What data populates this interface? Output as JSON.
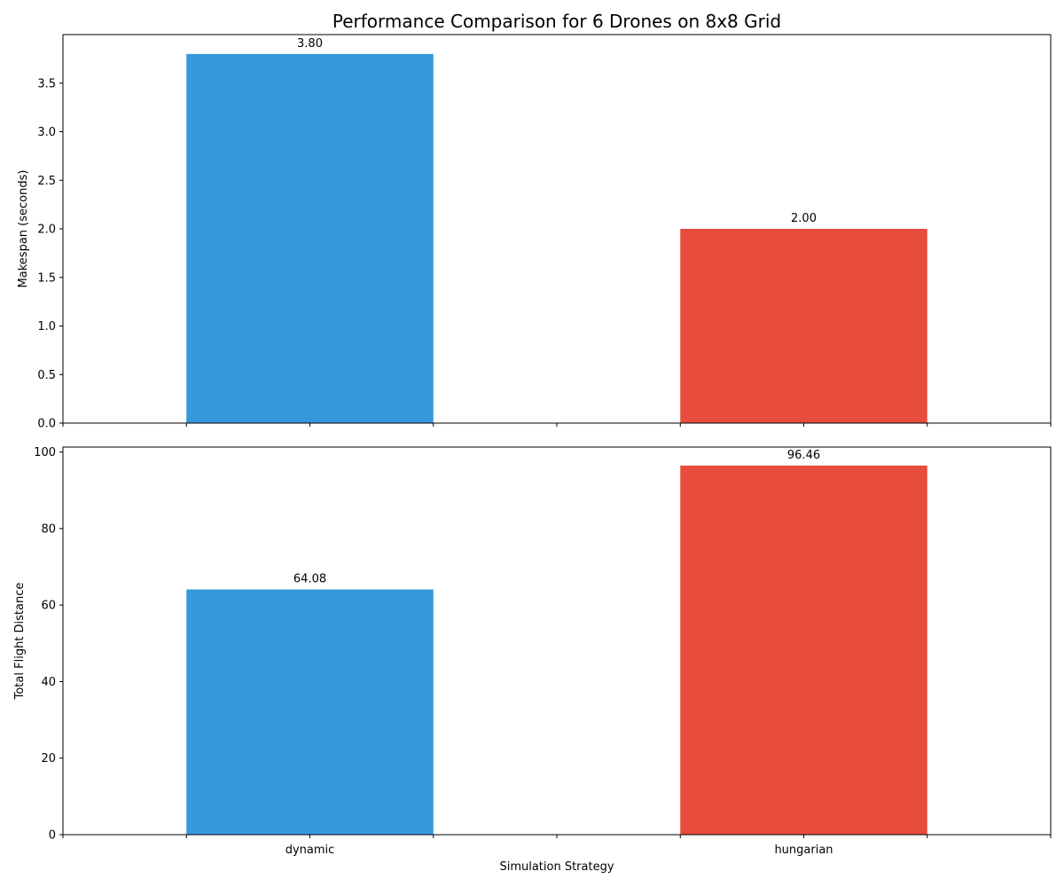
{
  "figure": {
    "title": "Performance Comparison for 6 Drones on 8x8 Grid"
  },
  "chart_data": [
    {
      "type": "bar",
      "categories": [
        "dynamic",
        "hungarian"
      ],
      "values": [
        3.8,
        2.0
      ],
      "value_labels": [
        "3.80",
        "2.00"
      ],
      "colors": [
        "#3498db",
        "#e74c3c"
      ],
      "xlabel": "",
      "ylabel": "Makespan (seconds)",
      "ylim": [
        0,
        4.0
      ],
      "yticks": [
        0.0,
        0.5,
        1.0,
        1.5,
        2.0,
        2.5,
        3.0,
        3.5
      ],
      "ytick_labels": [
        "0.0",
        "0.5",
        "1.0",
        "1.5",
        "2.0",
        "2.5",
        "3.0",
        "3.5"
      ],
      "show_category_labels": false,
      "grid": false,
      "legend": "none"
    },
    {
      "type": "bar",
      "categories": [
        "dynamic",
        "hungarian"
      ],
      "values": [
        64.08,
        96.46
      ],
      "value_labels": [
        "64.08",
        "96.46"
      ],
      "colors": [
        "#3498db",
        "#e74c3c"
      ],
      "xlabel": "Simulation Strategy",
      "ylabel": "Total Flight Distance",
      "ylim": [
        0,
        101.3
      ],
      "yticks": [
        0,
        20,
        40,
        60,
        80,
        100
      ],
      "ytick_labels": [
        "0",
        "20",
        "40",
        "60",
        "80",
        "100"
      ],
      "show_category_labels": true,
      "grid": false,
      "legend": "none"
    }
  ]
}
